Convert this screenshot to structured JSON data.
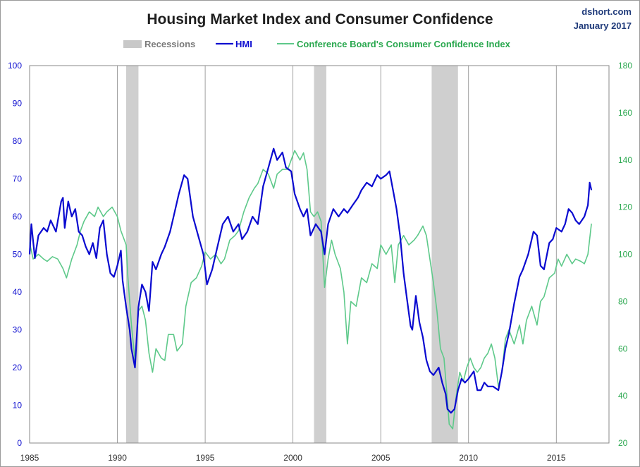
{
  "chart_data": {
    "type": "line",
    "title": "Housing Market Index and Consumer Confidence",
    "source": "dshort.com",
    "date": "January 2017",
    "legend": [
      {
        "key": "recessions",
        "label": "Recessions",
        "color": "#c8c8c8"
      },
      {
        "key": "hmi",
        "label": "HMI",
        "color": "#0a0ad0"
      },
      {
        "key": "cci",
        "label": "Conference Board's Consumer Confidence Index",
        "color": "#5ec98a"
      }
    ],
    "legend_position": "top",
    "x_ticks": [
      "1985",
      "1990",
      "1995",
      "2000",
      "2005",
      "2010",
      "2015"
    ],
    "xlim": [
      1985,
      2018.0
    ],
    "y_left": {
      "min": 0,
      "max": 100,
      "ticks": [
        0,
        10,
        20,
        30,
        40,
        50,
        60,
        70,
        80,
        90,
        100
      ],
      "color": "#1010d0"
    },
    "y_right": {
      "min": 20,
      "max": 180,
      "ticks": [
        20,
        40,
        60,
        80,
        100,
        120,
        140,
        160,
        180
      ],
      "color": "#2aa84f"
    },
    "grid": "vertical",
    "recessions": [
      [
        1990.5,
        1991.2
      ],
      [
        2001.2,
        2001.9
      ],
      [
        2007.9,
        2009.4
      ]
    ],
    "series": [
      {
        "name": "HMI",
        "axis": "left",
        "color": "#0a0ad0",
        "points": [
          [
            1985.0,
            50
          ],
          [
            1985.1,
            58
          ],
          [
            1985.3,
            49
          ],
          [
            1985.5,
            55
          ],
          [
            1985.8,
            57
          ],
          [
            1986.0,
            56
          ],
          [
            1986.2,
            59
          ],
          [
            1986.5,
            56
          ],
          [
            1986.8,
            64
          ],
          [
            1986.9,
            65
          ],
          [
            1987.0,
            57
          ],
          [
            1987.2,
            64
          ],
          [
            1987.4,
            60
          ],
          [
            1987.6,
            62
          ],
          [
            1987.8,
            56
          ],
          [
            1988.0,
            55
          ],
          [
            1988.2,
            52
          ],
          [
            1988.4,
            50
          ],
          [
            1988.6,
            53
          ],
          [
            1988.8,
            49
          ],
          [
            1989.0,
            57
          ],
          [
            1989.2,
            59
          ],
          [
            1989.4,
            50
          ],
          [
            1989.6,
            45
          ],
          [
            1989.8,
            44
          ],
          [
            1990.0,
            47
          ],
          [
            1990.2,
            51
          ],
          [
            1990.3,
            43
          ],
          [
            1990.5,
            36
          ],
          [
            1990.7,
            30
          ],
          [
            1990.8,
            25
          ],
          [
            1991.0,
            20
          ],
          [
            1991.2,
            36
          ],
          [
            1991.4,
            42
          ],
          [
            1991.6,
            40
          ],
          [
            1991.8,
            35
          ],
          [
            1992.0,
            48
          ],
          [
            1992.2,
            46
          ],
          [
            1992.5,
            50
          ],
          [
            1992.7,
            52
          ],
          [
            1993.0,
            56
          ],
          [
            1993.2,
            60
          ],
          [
            1993.5,
            66
          ],
          [
            1993.8,
            71
          ],
          [
            1994.0,
            70
          ],
          [
            1994.3,
            60
          ],
          [
            1994.6,
            55
          ],
          [
            1994.9,
            50
          ],
          [
            1995.0,
            46
          ],
          [
            1995.1,
            42
          ],
          [
            1995.4,
            46
          ],
          [
            1995.7,
            52
          ],
          [
            1996.0,
            58
          ],
          [
            1996.3,
            60
          ],
          [
            1996.6,
            56
          ],
          [
            1996.9,
            58
          ],
          [
            1997.1,
            54
          ],
          [
            1997.4,
            56
          ],
          [
            1997.7,
            60
          ],
          [
            1998.0,
            58
          ],
          [
            1998.3,
            68
          ],
          [
            1998.6,
            73
          ],
          [
            1998.9,
            78
          ],
          [
            1999.1,
            75
          ],
          [
            1999.4,
            77
          ],
          [
            1999.6,
            73
          ],
          [
            1999.9,
            72
          ],
          [
            2000.1,
            66
          ],
          [
            2000.4,
            62
          ],
          [
            2000.6,
            60
          ],
          [
            2000.8,
            62
          ],
          [
            2001.0,
            55
          ],
          [
            2001.3,
            58
          ],
          [
            2001.6,
            56
          ],
          [
            2001.8,
            50
          ],
          [
            2002.0,
            58
          ],
          [
            2002.3,
            62
          ],
          [
            2002.6,
            60
          ],
          [
            2002.9,
            62
          ],
          [
            2003.1,
            61
          ],
          [
            2003.4,
            63
          ],
          [
            2003.7,
            65
          ],
          [
            2003.9,
            67
          ],
          [
            2004.2,
            69
          ],
          [
            2004.5,
            68
          ],
          [
            2004.8,
            71
          ],
          [
            2005.0,
            70
          ],
          [
            2005.3,
            71
          ],
          [
            2005.5,
            72
          ],
          [
            2005.7,
            67
          ],
          [
            2005.9,
            62
          ],
          [
            2006.1,
            55
          ],
          [
            2006.3,
            45
          ],
          [
            2006.5,
            38
          ],
          [
            2006.7,
            31
          ],
          [
            2006.8,
            30
          ],
          [
            2007.0,
            39
          ],
          [
            2007.2,
            32
          ],
          [
            2007.4,
            28
          ],
          [
            2007.6,
            22
          ],
          [
            2007.8,
            19
          ],
          [
            2008.0,
            18
          ],
          [
            2008.3,
            20
          ],
          [
            2008.5,
            16
          ],
          [
            2008.7,
            13
          ],
          [
            2008.8,
            9
          ],
          [
            2009.0,
            8
          ],
          [
            2009.2,
            9
          ],
          [
            2009.4,
            14
          ],
          [
            2009.6,
            17
          ],
          [
            2009.8,
            16
          ],
          [
            2010.0,
            17
          ],
          [
            2010.3,
            19
          ],
          [
            2010.5,
            14
          ],
          [
            2010.7,
            14
          ],
          [
            2010.9,
            16
          ],
          [
            2011.1,
            15
          ],
          [
            2011.4,
            15
          ],
          [
            2011.7,
            14
          ],
          [
            2011.9,
            19
          ],
          [
            2012.1,
            25
          ],
          [
            2012.3,
            29
          ],
          [
            2012.6,
            37
          ],
          [
            2012.9,
            44
          ],
          [
            2013.1,
            46
          ],
          [
            2013.4,
            50
          ],
          [
            2013.7,
            56
          ],
          [
            2013.9,
            55
          ],
          [
            2014.1,
            47
          ],
          [
            2014.3,
            46
          ],
          [
            2014.6,
            53
          ],
          [
            2014.8,
            54
          ],
          [
            2015.0,
            57
          ],
          [
            2015.3,
            56
          ],
          [
            2015.5,
            58
          ],
          [
            2015.7,
            62
          ],
          [
            2015.9,
            61
          ],
          [
            2016.1,
            59
          ],
          [
            2016.3,
            58
          ],
          [
            2016.6,
            60
          ],
          [
            2016.8,
            63
          ],
          [
            2016.9,
            69
          ],
          [
            2017.0,
            67
          ]
        ]
      },
      {
        "name": "Conference Board's Consumer Confidence Index",
        "axis": "right",
        "color": "#5ec98a",
        "points": [
          [
            1985.0,
            105
          ],
          [
            1985.2,
            98
          ],
          [
            1985.5,
            100
          ],
          [
            1985.8,
            98
          ],
          [
            1986.0,
            97
          ],
          [
            1986.3,
            99
          ],
          [
            1986.6,
            98
          ],
          [
            1986.9,
            94
          ],
          [
            1987.1,
            90
          ],
          [
            1987.4,
            98
          ],
          [
            1987.7,
            104
          ],
          [
            1987.9,
            110
          ],
          [
            1988.1,
            114
          ],
          [
            1988.4,
            118
          ],
          [
            1988.7,
            116
          ],
          [
            1988.9,
            120
          ],
          [
            1989.2,
            116
          ],
          [
            1989.4,
            118
          ],
          [
            1989.7,
            120
          ],
          [
            1990.0,
            116
          ],
          [
            1990.2,
            110
          ],
          [
            1990.5,
            104
          ],
          [
            1990.6,
            90
          ],
          [
            1990.8,
            70
          ],
          [
            1991.0,
            55
          ],
          [
            1991.2,
            76
          ],
          [
            1991.4,
            78
          ],
          [
            1991.6,
            72
          ],
          [
            1991.8,
            58
          ],
          [
            1992.0,
            50
          ],
          [
            1992.2,
            60
          ],
          [
            1992.5,
            56
          ],
          [
            1992.7,
            55
          ],
          [
            1992.9,
            66
          ],
          [
            1993.2,
            66
          ],
          [
            1993.4,
            59
          ],
          [
            1993.7,
            62
          ],
          [
            1993.9,
            78
          ],
          [
            1994.2,
            88
          ],
          [
            1994.5,
            90
          ],
          [
            1994.8,
            95
          ],
          [
            1995.0,
            101
          ],
          [
            1995.3,
            98
          ],
          [
            1995.6,
            100
          ],
          [
            1995.9,
            96
          ],
          [
            1996.1,
            98
          ],
          [
            1996.4,
            106
          ],
          [
            1996.7,
            108
          ],
          [
            1996.9,
            110
          ],
          [
            1997.2,
            118
          ],
          [
            1997.5,
            124
          ],
          [
            1997.8,
            128
          ],
          [
            1998.0,
            130
          ],
          [
            1998.3,
            136
          ],
          [
            1998.6,
            134
          ],
          [
            1998.9,
            128
          ],
          [
            1999.1,
            134
          ],
          [
            1999.4,
            136
          ],
          [
            1999.7,
            136
          ],
          [
            1999.9,
            140
          ],
          [
            2000.1,
            144
          ],
          [
            2000.4,
            140
          ],
          [
            2000.6,
            143
          ],
          [
            2000.8,
            136
          ],
          [
            2001.0,
            118
          ],
          [
            2001.2,
            116
          ],
          [
            2001.4,
            118
          ],
          [
            2001.6,
            114
          ],
          [
            2001.8,
            86
          ],
          [
            2002.0,
            98
          ],
          [
            2002.2,
            106
          ],
          [
            2002.4,
            100
          ],
          [
            2002.7,
            94
          ],
          [
            2002.9,
            84
          ],
          [
            2003.1,
            62
          ],
          [
            2003.3,
            80
          ],
          [
            2003.6,
            78
          ],
          [
            2003.9,
            90
          ],
          [
            2004.2,
            88
          ],
          [
            2004.5,
            96
          ],
          [
            2004.8,
            94
          ],
          [
            2005.0,
            104
          ],
          [
            2005.3,
            100
          ],
          [
            2005.6,
            104
          ],
          [
            2005.8,
            88
          ],
          [
            2006.0,
            104
          ],
          [
            2006.3,
            108
          ],
          [
            2006.6,
            104
          ],
          [
            2006.9,
            106
          ],
          [
            2007.1,
            108
          ],
          [
            2007.4,
            112
          ],
          [
            2007.6,
            108
          ],
          [
            2007.8,
            98
          ],
          [
            2008.0,
            88
          ],
          [
            2008.2,
            76
          ],
          [
            2008.4,
            60
          ],
          [
            2008.6,
            56
          ],
          [
            2008.8,
            38
          ],
          [
            2008.9,
            28
          ],
          [
            2009.1,
            26
          ],
          [
            2009.3,
            40
          ],
          [
            2009.5,
            50
          ],
          [
            2009.7,
            46
          ],
          [
            2009.9,
            52
          ],
          [
            2010.1,
            56
          ],
          [
            2010.3,
            52
          ],
          [
            2010.5,
            50
          ],
          [
            2010.7,
            52
          ],
          [
            2010.9,
            56
          ],
          [
            2011.1,
            58
          ],
          [
            2011.3,
            62
          ],
          [
            2011.5,
            56
          ],
          [
            2011.7,
            44
          ],
          [
            2011.9,
            50
          ],
          [
            2012.1,
            64
          ],
          [
            2012.3,
            68
          ],
          [
            2012.6,
            62
          ],
          [
            2012.9,
            70
          ],
          [
            2013.1,
            62
          ],
          [
            2013.3,
            72
          ],
          [
            2013.6,
            78
          ],
          [
            2013.9,
            70
          ],
          [
            2014.1,
            80
          ],
          [
            2014.3,
            82
          ],
          [
            2014.6,
            90
          ],
          [
            2014.9,
            92
          ],
          [
            2015.1,
            98
          ],
          [
            2015.3,
            95
          ],
          [
            2015.6,
            100
          ],
          [
            2015.9,
            96
          ],
          [
            2016.1,
            98
          ],
          [
            2016.4,
            97
          ],
          [
            2016.6,
            96
          ],
          [
            2016.8,
            100
          ],
          [
            2017.0,
            113
          ]
        ]
      }
    ]
  }
}
